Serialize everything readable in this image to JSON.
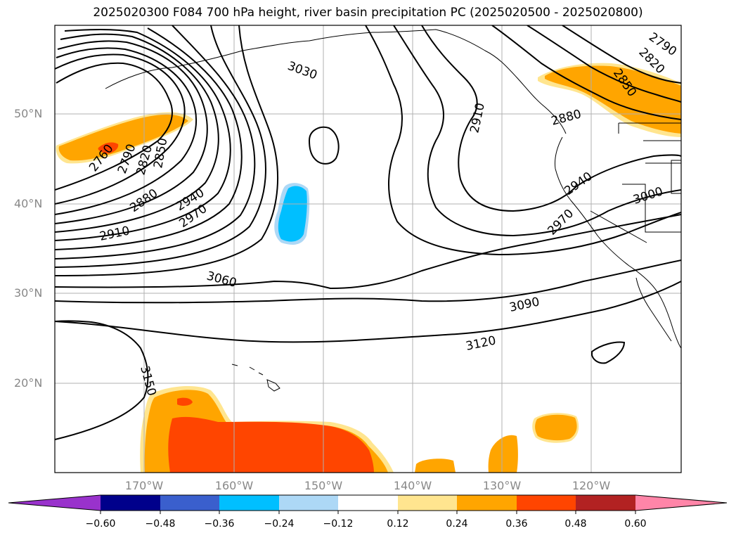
{
  "title": "2025020300 F084 700 hPa height, river basin precipitation PC (2025020500 - 2025020800)",
  "lat_labels": [
    "50°N",
    "40°N",
    "30°N",
    "20°N"
  ],
  "lon_labels": [
    "170°W",
    "160°W",
    "150°W",
    "140°W",
    "130°W",
    "120°W"
  ],
  "contour_labels": [
    "2760",
    "2790",
    "2820",
    "2850",
    "2880",
    "2910",
    "2940",
    "2970",
    "3030",
    "3060",
    "3090",
    "3120",
    "3150",
    "2910",
    "2880",
    "2940",
    "2970",
    "3000",
    "2790",
    "2820",
    "2850"
  ],
  "colorbar": {
    "ticks": [
      "−0.60",
      "−0.48",
      "−0.36",
      "−0.24",
      "−0.12",
      "0.12",
      "0.24",
      "0.36",
      "0.48",
      "0.60"
    ],
    "colors": [
      "#9932cc",
      "#00008b",
      "#3a5fcd",
      "#00bfff",
      "#add8f6",
      "#ffffff",
      "#ffe58f",
      "#ffa500",
      "#ff4500",
      "#b22222",
      "#ff85a8"
    ]
  }
}
